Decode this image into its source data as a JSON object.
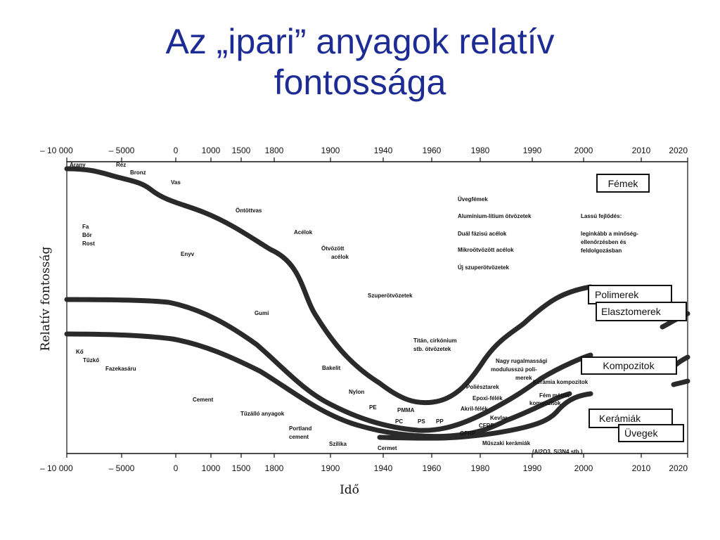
{
  "title": {
    "line1": "Az „ipari” anyagok relatív",
    "line2": "fontossága"
  },
  "colors": {
    "title": "#1c2c94",
    "curve": "#2a2a2a"
  },
  "chart_data": {
    "type": "line",
    "ylabel": "Relatív fontosság",
    "xlabel": "Idő",
    "x_ticks": [
      "– 10 000",
      "– 5000",
      "0",
      "1000",
      "1500",
      "1800",
      "1900",
      "1940",
      "1960",
      "1980",
      "1990",
      "2000",
      "2010",
      "2020"
    ],
    "categories": [
      "Fémek",
      "Polimerek Elasztomerek",
      "Kompozitok",
      "Kerámiák Üvegek"
    ],
    "category_boxes": {
      "femek": "Fémek",
      "polimerek": "Polimerek",
      "elasztomerek": "Elasztomerek",
      "kompozitok": "Kompozitok",
      "keramiak": "Kerámiák",
      "uvegek": "Üvegek"
    },
    "annotations": {
      "arany": "Arany",
      "rez": "Réz",
      "bronz": "Bronz",
      "vas": "Vas",
      "fa": "Fa",
      "bor": "Bőr",
      "rost": "Rost",
      "ko": "Kő",
      "tuzko": "Tűzkő",
      "fazekasaru": "Fazekasáru",
      "ontottvas": "Öntöttvas",
      "acelok": "Acélok",
      "enyv": "Enyv",
      "otvozott": "Ötvözött",
      "otvozott_acelok": "acélok",
      "gumi": "Gumi",
      "cement": "Cement",
      "bakelit": "Bakelit",
      "nylon": "Nylon",
      "pe": "PE",
      "pmma": "PMMA",
      "pc": "PC",
      "ps": "PS",
      "pp": "PP",
      "tuzallo": "Tűzálló anyagok",
      "portland1": "Portland",
      "portland2": "cement",
      "szilika": "Szilika",
      "cermet": "Cermet",
      "szuperotvozetek": "Szuperötvözetek",
      "titan1": "Titán, cirkónium",
      "titan2": "stb. ötvözetek",
      "nagy1": "Nagy rugalmassági",
      "nagy2": "modulusszú poli-",
      "nagy3": "merek",
      "poliesztarek": "Poliésztarek",
      "epoxi": "Epoxi-félék",
      "akril": "Akril-félék",
      "kevlar": "Kevlar",
      "cfrp": "CFRP",
      "gfrp": "GFRP",
      "kerkomp": "Kerámia kompozitok",
      "femmatrix1": "Fém mátrix",
      "femmatrix2": "kompozitok",
      "muszaki1": "Műszaki kerámiák",
      "muszaki2": "(Al2O3, Si3N4 stb.)",
      "uvegfemek": "Üvegfémek",
      "allit": "Alumínium-lítium ötvözetek",
      "dual": "Duál fázisú acélok",
      "mikro": "Mikroötvözött acélok",
      "uj": "Új szuperötvözetek",
      "lassu": "Lassú fejlődés:",
      "legink1": "leginkább a minőség-",
      "legink2": "ellenőrzésben és",
      "legink3": "feldolgozásban"
    }
  }
}
